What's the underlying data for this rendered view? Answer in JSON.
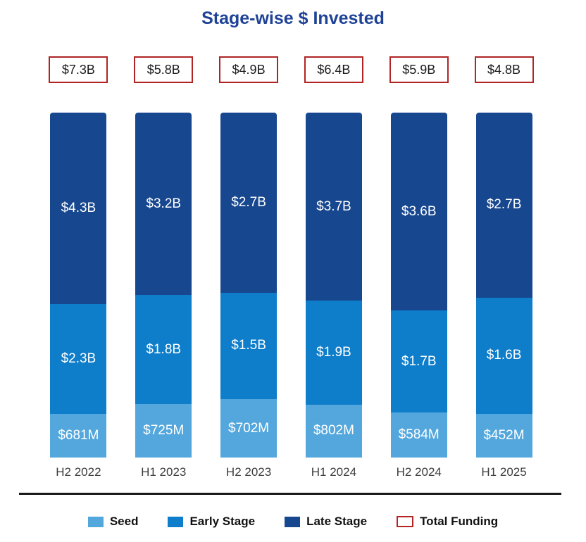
{
  "chart_data": {
    "type": "bar",
    "subtype": "percent-stacked-column",
    "title": "Stage-wise $ Invested",
    "xlabel": "",
    "ylabel": "",
    "grid": false,
    "legend_position": "bottom",
    "bars_normalized_to_equal_height": true,
    "categories": [
      "H2 2022",
      "H1 2023",
      "H2 2023",
      "H1 2024",
      "H2 2024",
      "H1 2025"
    ],
    "series": [
      {
        "name": "Seed",
        "color": "#54a7dc",
        "values_musd": [
          681,
          725,
          702,
          802,
          584,
          452
        ],
        "labels": [
          "$681M",
          "$725M",
          "$702M",
          "$802M",
          "$584M",
          "$452M"
        ]
      },
      {
        "name": "Early Stage",
        "color": "#0e7dca",
        "values_musd": [
          2300,
          1800,
          1500,
          1900,
          1700,
          1600
        ],
        "labels": [
          "$2.3B",
          "$1.8B",
          "$1.5B",
          "$1.9B",
          "$1.7B",
          "$1.6B"
        ]
      },
      {
        "name": "Late Stage",
        "color": "#17478f",
        "values_musd": [
          4300,
          3200,
          2700,
          3700,
          3600,
          2700
        ],
        "labels": [
          "$4.3B",
          "$3.2B",
          "$2.7B",
          "$3.7B",
          "$3.6B",
          "$2.7B"
        ]
      }
    ],
    "totals": {
      "name": "Total Funding",
      "values_busd": [
        7.3,
        5.8,
        4.9,
        6.4,
        5.9,
        4.8
      ],
      "labels": [
        "$7.3B",
        "$5.8B",
        "$4.9B",
        "$6.4B",
        "$5.9B",
        "$4.8B"
      ],
      "box_border_color": "#b02424"
    },
    "legend": [
      {
        "label": "Seed",
        "swatch": "fill",
        "color": "#54a7dc"
      },
      {
        "label": "Early Stage",
        "swatch": "fill",
        "color": "#0e7dca"
      },
      {
        "label": "Late Stage",
        "swatch": "fill",
        "color": "#17478f"
      },
      {
        "label": "Total Funding",
        "swatch": "outline",
        "color": "#b42525"
      }
    ]
  },
  "colors": {
    "title": "#1e4296",
    "axis_line": "#1a1a1a",
    "category_text": "#3d3d3d",
    "segment_label_text": "#ffffff",
    "background": "#ffffff"
  }
}
